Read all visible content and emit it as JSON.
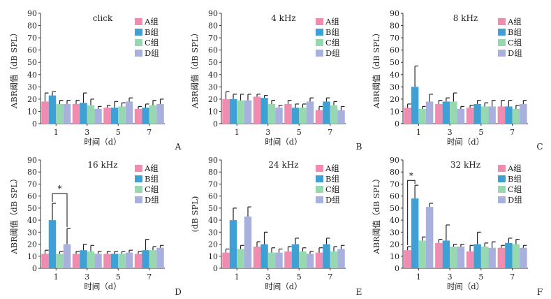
{
  "colors": [
    "#f08cb0",
    "#3ea0d4",
    "#96d8b0",
    "#a8b0de"
  ],
  "common": {
    "ylabel": "ABR阈值（dB SPL）",
    "xlabel": "时间（d）",
    "categories": [
      "1",
      "3",
      "5",
      "7"
    ],
    "series_names": [
      "A组",
      "B组",
      "C组",
      "D组"
    ],
    "ylim": [
      0,
      90
    ],
    "yticks": [
      0,
      10,
      20,
      30,
      40,
      50,
      60,
      70,
      80,
      90
    ]
  },
  "chart_data": [
    {
      "type": "bar",
      "title": "click",
      "panel_label": "A",
      "show_ylabel": true,
      "show_yunit_line": true,
      "categories": [
        "1",
        "3",
        "5",
        "7"
      ],
      "series": [
        {
          "name": "A组",
          "values": [
            18,
            16,
            13,
            12
          ],
          "errors": [
            7,
            3,
            2,
            2
          ]
        },
        {
          "name": "B组",
          "values": [
            23,
            17,
            13,
            13
          ],
          "errors": [
            3,
            8,
            5,
            3
          ]
        },
        {
          "name": "C组",
          "values": [
            16,
            15,
            14,
            15
          ],
          "errors": [
            3,
            5,
            3,
            4
          ]
        },
        {
          "name": "D组",
          "values": [
            16,
            12,
            18,
            16
          ],
          "errors": [
            3,
            2,
            3,
            4
          ]
        }
      ],
      "significance": []
    },
    {
      "type": "bar",
      "title": "4 kHz",
      "panel_label": "B",
      "show_ylabel": true,
      "show_yunit_line": false,
      "categories": [
        "1",
        "3",
        "5",
        "7"
      ],
      "series": [
        {
          "name": "A组",
          "values": [
            20,
            22,
            16,
            11
          ],
          "errors": [
            6,
            2,
            3,
            3
          ]
        },
        {
          "name": "B组",
          "values": [
            20,
            21,
            13,
            18
          ],
          "errors": [
            4,
            2,
            3,
            3
          ]
        },
        {
          "name": "C组",
          "values": [
            19,
            16,
            13,
            15
          ],
          "errors": [
            5,
            3,
            3,
            3
          ]
        },
        {
          "name": "D组",
          "values": [
            19,
            13,
            18,
            11
          ],
          "errors": [
            5,
            2,
            3,
            3
          ]
        }
      ],
      "significance": []
    },
    {
      "type": "bar",
      "title": "8 kHz",
      "panel_label": "C",
      "show_ylabel": true,
      "show_yunit_line": false,
      "categories": [
        "1",
        "3",
        "5",
        "7"
      ],
      "series": [
        {
          "name": "A组",
          "values": [
            13,
            16,
            13,
            14
          ],
          "errors": [
            3,
            3,
            2,
            5
          ]
        },
        {
          "name": "B组",
          "values": [
            30,
            18,
            16,
            14
          ],
          "errors": [
            17,
            3,
            3,
            5
          ]
        },
        {
          "name": "C组",
          "values": [
            12,
            18,
            14,
            12
          ],
          "errors": [
            2,
            7,
            3,
            3
          ]
        },
        {
          "name": "D组",
          "values": [
            18,
            12,
            14,
            16
          ],
          "errors": [
            6,
            2,
            5,
            3
          ]
        }
      ],
      "significance": []
    },
    {
      "type": "bar",
      "title": "16 kHz",
      "panel_label": "D",
      "show_ylabel": true,
      "show_yunit_line": true,
      "categories": [
        "1",
        "3",
        "5",
        "7"
      ],
      "series": [
        {
          "name": "A组",
          "values": [
            12,
            12,
            12,
            12
          ],
          "errors": [
            3,
            2,
            2,
            2
          ]
        },
        {
          "name": "B组",
          "values": [
            40,
            15,
            12,
            15
          ],
          "errors": [
            14,
            5,
            2,
            9
          ]
        },
        {
          "name": "C组",
          "values": [
            12,
            14,
            12,
            15
          ],
          "errors": [
            2,
            5,
            2,
            3
          ]
        },
        {
          "name": "D组",
          "values": [
            20,
            12,
            13,
            17
          ],
          "errors": [
            13,
            2,
            2,
            2
          ]
        }
      ],
      "significance": [
        {
          "category": 0,
          "from_series": 1,
          "to_series": 3,
          "y": 62,
          "label": "*"
        }
      ]
    },
    {
      "type": "bar",
      "title": "24 kHz",
      "panel_label": "E",
      "show_ylabel": false,
      "show_yunit_line": false,
      "yunit_label": "(dB SPL)",
      "categories": [
        "1",
        "3",
        "5",
        "7"
      ],
      "series": [
        {
          "name": "A组",
          "values": [
            13,
            18,
            14,
            13
          ],
          "errors": [
            3,
            4,
            4,
            4
          ]
        },
        {
          "name": "B组",
          "values": [
            40,
            20,
            20,
            20
          ],
          "errors": [
            10,
            10,
            5,
            5
          ]
        },
        {
          "name": "C组",
          "values": [
            16,
            13,
            14,
            14
          ],
          "errors": [
            3,
            4,
            3,
            4
          ]
        },
        {
          "name": "D组",
          "values": [
            43,
            13,
            12,
            16
          ],
          "errors": [
            8,
            3,
            2,
            3
          ]
        }
      ],
      "significance": []
    },
    {
      "type": "bar",
      "title": "32 kHz",
      "panel_label": "F",
      "show_ylabel": true,
      "show_yunit_line": false,
      "categories": [
        "1",
        "3",
        "5",
        "7"
      ],
      "series": [
        {
          "name": "A组",
          "values": [
            15,
            21,
            14,
            17
          ],
          "errors": [
            3,
            3,
            5,
            2
          ]
        },
        {
          "name": "B组",
          "values": [
            58,
            23,
            20,
            21
          ],
          "errors": [
            11,
            13,
            10,
            4
          ]
        },
        {
          "name": "C组",
          "values": [
            23,
            18,
            18,
            20
          ],
          "errors": [
            3,
            2,
            3,
            4
          ]
        },
        {
          "name": "D组",
          "values": [
            51,
            18,
            17,
            17
          ],
          "errors": [
            3,
            2,
            5,
            2
          ]
        }
      ],
      "significance": [
        {
          "category": 0,
          "from_series": 0,
          "to_series": 1,
          "y": 73,
          "label": "*"
        }
      ]
    }
  ]
}
